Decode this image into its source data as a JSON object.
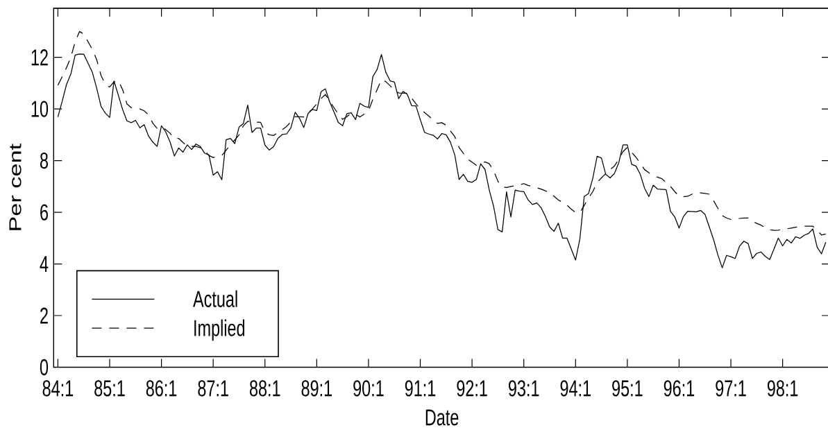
{
  "chart_data": {
    "type": "line",
    "xlabel": "Date",
    "ylabel": "Per cent",
    "categories": [
      "84:1",
      null,
      null,
      null,
      null,
      null,
      null,
      null,
      null,
      null,
      null,
      null,
      "85:1",
      null,
      null,
      null,
      null,
      null,
      null,
      null,
      null,
      null,
      null,
      null,
      "86:1",
      null,
      null,
      null,
      null,
      null,
      null,
      null,
      null,
      null,
      null,
      null,
      "87:1",
      null,
      null,
      null,
      null,
      null,
      null,
      null,
      null,
      null,
      null,
      null,
      "88:1",
      null,
      null,
      null,
      null,
      null,
      null,
      null,
      null,
      null,
      null,
      null,
      "89:1",
      null,
      null,
      null,
      null,
      null,
      null,
      null,
      null,
      null,
      null,
      null,
      "90:1",
      null,
      null,
      null,
      null,
      null,
      null,
      null,
      null,
      null,
      null,
      null,
      "91:1",
      null,
      null,
      null,
      null,
      null,
      null,
      null,
      null,
      null,
      null,
      null,
      "92:1",
      null,
      null,
      null,
      null,
      null,
      null,
      null,
      null,
      null,
      null,
      null,
      "93:1",
      null,
      null,
      null,
      null,
      null,
      null,
      null,
      null,
      null,
      null,
      null,
      "94:1",
      null,
      null,
      null,
      null,
      null,
      null,
      null,
      null,
      null,
      null,
      null,
      "95:1",
      null,
      null,
      null,
      null,
      null,
      null,
      null,
      null,
      null,
      null,
      null,
      "96:1",
      null,
      null,
      null,
      null,
      null,
      null,
      null,
      null,
      null,
      null,
      null,
      "97:1",
      null,
      null,
      null,
      null,
      null,
      null,
      null,
      null,
      null,
      null,
      null,
      "98:1",
      null,
      null,
      null,
      null,
      null,
      null,
      null,
      null,
      null,
      null
    ],
    "series": [
      {
        "name": "Actual",
        "color": "#000000",
        "line_style": "solid",
        "values": [
          9.69,
          10.3,
          10.95,
          11.35,
          12.09,
          12.13,
          12.12,
          11.77,
          11.41,
          10.8,
          10.1,
          9.84,
          9.67,
          11.08,
          10.54,
          9.98,
          9.54,
          9.47,
          9.56,
          9.27,
          9.39,
          8.95,
          8.72,
          8.55,
          9.35,
          9.11,
          8.72,
          8.18,
          8.49,
          8.33,
          8.61,
          8.43,
          8.64,
          8.55,
          8.29,
          8.22,
          7.44,
          7.57,
          7.26,
          8.81,
          8.86,
          8.66,
          9.3,
          9.44,
          10.15,
          9.09,
          9.26,
          9.26,
          8.6,
          8.41,
          8.54,
          8.86,
          9.01,
          9.03,
          9.27,
          9.87,
          9.64,
          9.28,
          9.83,
          9.98,
          9.94,
          10.67,
          10.78,
          10.27,
          9.88,
          9.48,
          9.35,
          9.82,
          9.85,
          9.59,
          10.22,
          10.11,
          10.06,
          11.25,
          11.53,
          12.11,
          11.43,
          11.09,
          11.04,
          10.4,
          10.68,
          10.56,
          10.13,
          10.12,
          9.59,
          9.09,
          9.03,
          8.98,
          8.84,
          9.05,
          9.0,
          8.71,
          8.22,
          7.27,
          7.47,
          7.2,
          7.16,
          7.27,
          7.88,
          7.66,
          6.86,
          6.23,
          5.33,
          5.24,
          6.79,
          5.82,
          6.86,
          6.82,
          6.8,
          6.48,
          6.3,
          6.36,
          6.18,
          5.84,
          5.43,
          5.26,
          5.58,
          5.0,
          5.0,
          4.58,
          4.15,
          4.97,
          6.61,
          6.72,
          7.32,
          8.17,
          8.1,
          7.47,
          7.33,
          7.5,
          7.91,
          8.61,
          8.61,
          7.86,
          7.79,
          7.47,
          6.93,
          6.61,
          7.05,
          6.9,
          6.89,
          6.88,
          6.04,
          5.82,
          5.39,
          5.83,
          6.04,
          6.03,
          6.02,
          6.07,
          5.92,
          5.43,
          4.94,
          4.34,
          3.85,
          4.33,
          4.28,
          4.21,
          4.68,
          4.88,
          4.79,
          4.21,
          4.41,
          4.46,
          4.29,
          4.17,
          4.58,
          5.0,
          4.7,
          4.95,
          4.81,
          5.05,
          4.99,
          5.11,
          5.18,
          5.35,
          4.65,
          4.39,
          4.84
        ]
      },
      {
        "name": "Implied",
        "color": "#000000",
        "line_style": "dashed",
        "values": [
          10.92,
          11.25,
          11.6,
          12.0,
          12.6,
          13.0,
          12.9,
          12.6,
          12.3,
          11.9,
          11.3,
          10.95,
          10.85,
          11.05,
          11.1,
          10.75,
          10.2,
          10.05,
          10.02,
          10.0,
          9.93,
          9.77,
          9.45,
          9.25,
          9.3,
          9.2,
          9.06,
          8.85,
          8.86,
          8.7,
          8.55,
          8.55,
          8.55,
          8.5,
          8.4,
          8.2,
          8.12,
          8.15,
          8.2,
          8.4,
          8.63,
          8.8,
          9.0,
          9.35,
          9.52,
          9.5,
          9.49,
          9.48,
          9.1,
          9.0,
          8.97,
          9.1,
          9.2,
          9.32,
          9.5,
          9.7,
          9.7,
          9.69,
          9.85,
          10.0,
          10.2,
          10.4,
          10.56,
          10.3,
          10.05,
          9.8,
          9.6,
          9.7,
          9.84,
          9.79,
          9.69,
          9.8,
          9.93,
          10.37,
          10.75,
          11.14,
          11.06,
          10.9,
          10.73,
          10.62,
          10.61,
          10.61,
          10.42,
          10.2,
          10.0,
          9.86,
          9.72,
          9.58,
          9.44,
          9.47,
          9.37,
          9.15,
          8.93,
          8.51,
          8.28,
          8.06,
          7.94,
          7.82,
          7.88,
          7.95,
          7.88,
          7.61,
          7.2,
          6.98,
          6.96,
          7.0,
          7.03,
          7.06,
          7.11,
          7.04,
          7.0,
          6.95,
          6.9,
          6.83,
          6.75,
          6.62,
          6.48,
          6.38,
          6.28,
          6.12,
          5.99,
          5.99,
          6.26,
          6.55,
          6.8,
          7.16,
          7.33,
          7.5,
          7.65,
          7.79,
          8.05,
          8.35,
          8.51,
          8.32,
          8.13,
          7.9,
          7.65,
          7.53,
          7.42,
          7.36,
          7.3,
          7.15,
          7.0,
          6.8,
          6.62,
          6.6,
          6.62,
          6.7,
          6.77,
          6.75,
          6.73,
          6.7,
          6.45,
          6.15,
          5.87,
          5.78,
          5.72,
          5.74,
          5.76,
          5.78,
          5.78,
          5.65,
          5.57,
          5.5,
          5.4,
          5.32,
          5.3,
          5.31,
          5.33,
          5.36,
          5.39,
          5.42,
          5.44,
          5.46,
          5.46,
          5.46,
          5.3,
          5.12,
          5.16
        ]
      }
    ],
    "ylim": [
      0,
      13.9
    ],
    "yticks": [
      0,
      2,
      4,
      6,
      8,
      10,
      12
    ],
    "legend": "bottom left",
    "marker": "none"
  }
}
